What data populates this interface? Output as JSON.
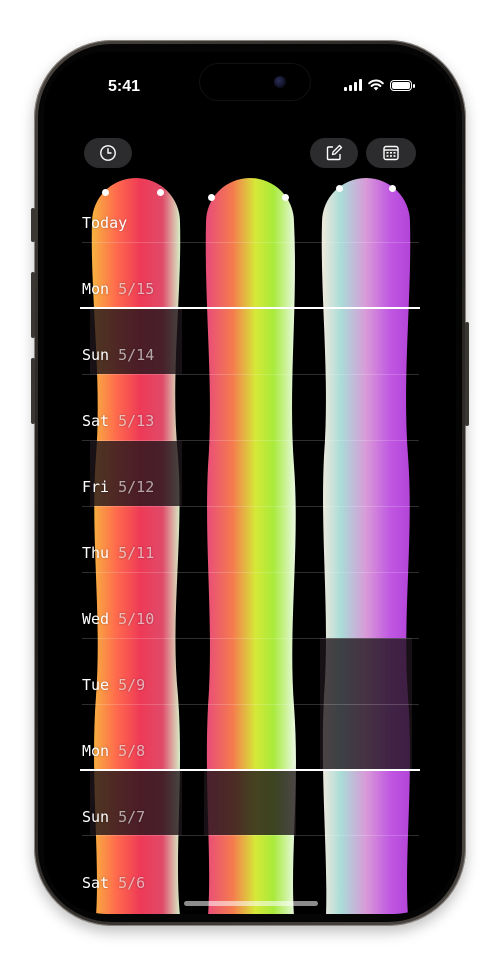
{
  "status": {
    "time": "5:41"
  },
  "toolbar": {
    "history_icon": "clock-icon",
    "compose_icon": "compose-icon",
    "calendar_icon": "calendar-icon"
  },
  "days": [
    {
      "name": "Today",
      "date": ""
    },
    {
      "name": "Mon",
      "date": "5/15"
    },
    {
      "name": "Sun",
      "date": "5/14"
    },
    {
      "name": "Sat",
      "date": "5/13"
    },
    {
      "name": "Fri",
      "date": "5/12"
    },
    {
      "name": "Thu",
      "date": "5/11"
    },
    {
      "name": "Wed",
      "date": "5/10"
    },
    {
      "name": "Tue",
      "date": "5/9"
    },
    {
      "name": "Mon",
      "date": "5/8"
    },
    {
      "name": "Sun",
      "date": "5/7"
    },
    {
      "name": "Sat",
      "date": "5/6"
    }
  ],
  "colors": {
    "col1": [
      "#f7b33f",
      "#ff6a4d",
      "#ee3a57",
      "#e04a68",
      "#d6f0c8"
    ],
    "col2": [
      "#e84b7a",
      "#f57b4f",
      "#d6e838",
      "#a8ea3a",
      "#e9f8e4"
    ],
    "col3": [
      "#f2eadc",
      "#a9dcd8",
      "#d99ad8",
      "#c056e2",
      "#b244d8"
    ]
  }
}
